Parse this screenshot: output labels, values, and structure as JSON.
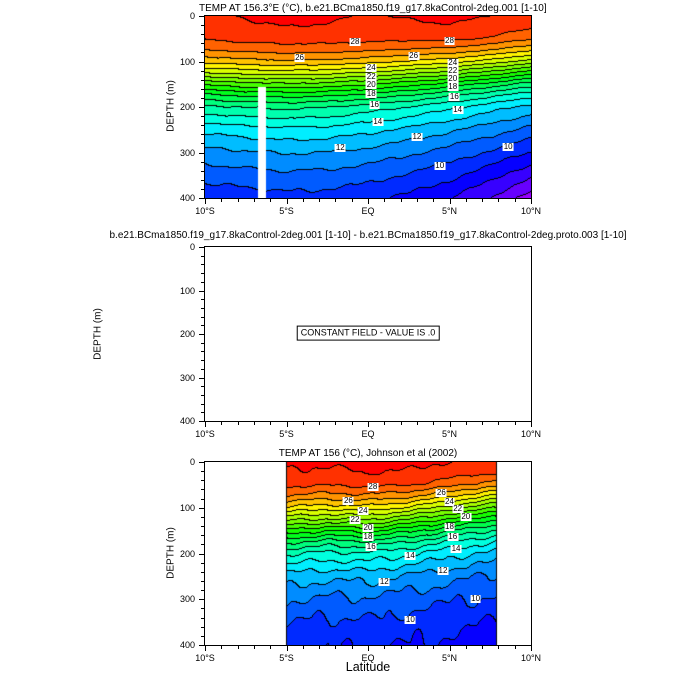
{
  "page": {
    "background": "#ffffff",
    "frame_color": "#000000",
    "xlabel": "Latitude"
  },
  "chart_data": [
    {
      "type": "heatmap",
      "subtype": "filled-contour-depth-section",
      "title": "TEMP AT 156.3°E (°C), b.e21.BCma1850.f19_g17.8kaControl-2deg.001 [1-10]",
      "ylabel": "DEPTH (m)",
      "units": "°C",
      "xlim": [
        -10,
        10
      ],
      "ylim": [
        0,
        400
      ],
      "y_inverted": true,
      "contour_interval": 1,
      "xticks": [
        {
          "v": -10,
          "label": "10°S"
        },
        {
          "v": -5,
          "label": "5°S"
        },
        {
          "v": 0,
          "label": "EQ"
        },
        {
          "v": 5,
          "label": "5°N"
        },
        {
          "v": 10,
          "label": "10°N"
        }
      ],
      "yticks": [
        {
          "v": 0,
          "label": "0"
        },
        {
          "v": 100,
          "label": "100"
        },
        {
          "v": 200,
          "label": "200"
        },
        {
          "v": 300,
          "label": "300"
        },
        {
          "v": 400,
          "label": "400"
        }
      ],
      "grid": {
        "lats": [
          -10,
          -7.5,
          -5,
          -2.5,
          0,
          2.5,
          5,
          7.5,
          10
        ],
        "depths": [
          0,
          25,
          50,
          75,
          100,
          125,
          150,
          175,
          200,
          250,
          300,
          350,
          400
        ],
        "temps": [
          [
            28.8,
            29.1,
            29.3,
            29.2,
            28.9,
            29.1,
            29.3,
            29.0,
            28.6
          ],
          [
            28.6,
            28.8,
            29.0,
            28.9,
            28.7,
            28.8,
            28.9,
            28.6,
            28.2
          ],
          [
            28.1,
            28.4,
            28.5,
            28.5,
            28.4,
            28.3,
            28.3,
            27.9,
            27.2
          ],
          [
            27.0,
            27.3,
            27.5,
            27.4,
            27.2,
            26.9,
            26.7,
            26.1,
            25.2
          ],
          [
            25.4,
            25.7,
            25.9,
            25.8,
            25.5,
            25.0,
            24.5,
            23.7,
            22.6
          ],
          [
            23.1,
            23.4,
            23.6,
            23.4,
            23.0,
            22.4,
            21.7,
            20.7,
            19.5
          ],
          [
            20.3,
            20.7,
            20.9,
            20.7,
            20.2,
            19.5,
            18.7,
            17.7,
            16.6
          ],
          [
            17.8,
            18.2,
            18.4,
            18.2,
            17.7,
            17.0,
            16.2,
            15.3,
            14.4
          ],
          [
            15.8,
            16.1,
            16.3,
            16.1,
            15.6,
            15.0,
            14.3,
            13.5,
            12.7
          ],
          [
            13.3,
            13.6,
            13.8,
            13.7,
            13.3,
            12.8,
            12.2,
            11.5,
            10.7
          ],
          [
            11.7,
            11.9,
            12.1,
            12.0,
            11.7,
            11.2,
            10.6,
            9.9,
            9.0
          ],
          [
            10.4,
            10.6,
            10.8,
            10.7,
            10.4,
            9.9,
            9.3,
            8.4,
            7.2
          ],
          [
            9.3,
            9.5,
            9.7,
            9.6,
            9.3,
            8.8,
            8.1,
            7.0,
            5.6
          ]
        ]
      },
      "mask_gap": {
        "lat_min": -6.75,
        "lat_max": -6.28,
        "depth_min": 155,
        "depth_max": 400
      },
      "contour_labels": [
        {
          "text": "28",
          "lat": -0.8,
          "depth": 58
        },
        {
          "text": "28",
          "lat": 5.0,
          "depth": 54
        },
        {
          "text": "26",
          "lat": -4.2,
          "depth": 92
        },
        {
          "text": "26",
          "lat": 2.8,
          "depth": 88
        },
        {
          "text": "24",
          "lat": 0.2,
          "depth": 115
        },
        {
          "text": "24",
          "lat": 5.2,
          "depth": 103
        },
        {
          "text": "22",
          "lat": 0.2,
          "depth": 134
        },
        {
          "text": "22",
          "lat": 5.2,
          "depth": 121
        },
        {
          "text": "20",
          "lat": 0.2,
          "depth": 152
        },
        {
          "text": "20",
          "lat": 5.2,
          "depth": 139
        },
        {
          "text": "18",
          "lat": 0.2,
          "depth": 172
        },
        {
          "text": "18",
          "lat": 5.2,
          "depth": 157
        },
        {
          "text": "16",
          "lat": 0.4,
          "depth": 195
        },
        {
          "text": "16",
          "lat": 5.3,
          "depth": 178
        },
        {
          "text": "14",
          "lat": 0.6,
          "depth": 233
        },
        {
          "text": "14",
          "lat": 5.5,
          "depth": 207
        },
        {
          "text": "12",
          "lat": -1.7,
          "depth": 290
        },
        {
          "text": "12",
          "lat": 3.0,
          "depth": 265
        },
        {
          "text": "10",
          "lat": 4.4,
          "depth": 330
        },
        {
          "text": "10",
          "lat": 8.6,
          "depth": 288
        }
      ],
      "style": {
        "wiggle_amp": 0.12,
        "outline_data_edge": false,
        "line_color": "#000000",
        "colormap": "rainbow",
        "warm_color_hue": 0,
        "cold_color_hue": 276
      }
    },
    {
      "type": "empty",
      "title": "b.e21.BCma1850.f19_g17.8kaControl-2deg.001 [1-10] - b.e21.BCma1850.f19_g17.8kaControl-2deg.proto.003 [1-10]",
      "ylabel": "DEPTH (m)",
      "note": "CONSTANT FIELD - VALUE IS .0",
      "xlim": [
        -10,
        10
      ],
      "ylim": [
        0,
        400
      ],
      "y_inverted": true,
      "xticks": [
        {
          "v": -10,
          "label": "10°S"
        },
        {
          "v": -5,
          "label": "5°S"
        },
        {
          "v": 0,
          "label": "EQ"
        },
        {
          "v": 5,
          "label": "5°N"
        },
        {
          "v": 10,
          "label": "10°N"
        }
      ],
      "yticks": [
        {
          "v": 0,
          "label": "0"
        },
        {
          "v": 100,
          "label": "100"
        },
        {
          "v": 200,
          "label": "200"
        },
        {
          "v": 300,
          "label": "300"
        },
        {
          "v": 400,
          "label": "400"
        }
      ]
    },
    {
      "type": "heatmap",
      "subtype": "filled-contour-depth-section",
      "title": "TEMP AT 156 (°C), Johnson et al (2002)",
      "ylabel": "DEPTH (m)",
      "units": "°C",
      "xlim": [
        -10,
        10
      ],
      "ylim": [
        0,
        400
      ],
      "y_inverted": true,
      "contour_interval": 1,
      "data_lat_range": [
        -5,
        7.9
      ],
      "xticks": [
        {
          "v": -10,
          "label": "10°S"
        },
        {
          "v": -5,
          "label": "5°S"
        },
        {
          "v": 0,
          "label": "EQ"
        },
        {
          "v": 5,
          "label": "5°N"
        },
        {
          "v": 10,
          "label": "10°N"
        }
      ],
      "yticks": [
        {
          "v": 0,
          "label": "0"
        },
        {
          "v": 100,
          "label": "100"
        },
        {
          "v": 200,
          "label": "200"
        },
        {
          "v": 300,
          "label": "300"
        },
        {
          "v": 400,
          "label": "400"
        }
      ],
      "grid": {
        "lats": [
          -5,
          -2.5,
          0,
          2.5,
          5,
          6.5,
          7.9
        ],
        "depths": [
          0,
          25,
          50,
          75,
          100,
          125,
          150,
          175,
          200,
          250,
          300,
          350,
          400
        ],
        "temps": [
          [
            29.3,
            29.1,
            29.4,
            29.3,
            29.0,
            28.9,
            28.7
          ],
          [
            28.9,
            28.8,
            29.0,
            28.9,
            28.5,
            28.3,
            28.0
          ],
          [
            28.3,
            28.1,
            28.3,
            28.1,
            27.4,
            26.9,
            26.3
          ],
          [
            26.9,
            26.6,
            26.8,
            26.3,
            25.2,
            24.5,
            23.7
          ],
          [
            24.9,
            24.5,
            24.7,
            23.9,
            22.6,
            21.8,
            21.0
          ],
          [
            22.4,
            22.0,
            22.2,
            21.2,
            19.9,
            19.1,
            18.3
          ],
          [
            19.7,
            19.2,
            19.4,
            18.4,
            17.2,
            16.5,
            15.9
          ],
          [
            17.2,
            16.7,
            16.9,
            16.0,
            15.0,
            14.5,
            14.0
          ],
          [
            15.2,
            14.8,
            14.9,
            14.2,
            13.4,
            13.0,
            12.7
          ],
          [
            12.7,
            12.3,
            12.4,
            11.9,
            11.4,
            11.1,
            10.9
          ],
          [
            11.1,
            10.8,
            10.9,
            10.5,
            10.2,
            10.0,
            9.8
          ],
          [
            10.1,
            9.8,
            9.9,
            9.6,
            9.3,
            9.1,
            9.0
          ],
          [
            9.3,
            9.1,
            9.2,
            9.0,
            8.8,
            8.7,
            8.6
          ]
        ]
      },
      "contour_labels": [
        {
          "text": "28",
          "lat": 0.3,
          "depth": 55
        },
        {
          "text": "26",
          "lat": -1.2,
          "depth": 85
        },
        {
          "text": "26",
          "lat": 4.5,
          "depth": 68
        },
        {
          "text": "24",
          "lat": -0.3,
          "depth": 107
        },
        {
          "text": "24",
          "lat": 5.0,
          "depth": 88
        },
        {
          "text": "22",
          "lat": -0.8,
          "depth": 127
        },
        {
          "text": "22",
          "lat": 5.5,
          "depth": 102
        },
        {
          "text": "20",
          "lat": 0.0,
          "depth": 145
        },
        {
          "text": "20",
          "lat": 6.0,
          "depth": 121
        },
        {
          "text": "18",
          "lat": 0.0,
          "depth": 164
        },
        {
          "text": "18",
          "lat": 5.0,
          "depth": 142
        },
        {
          "text": "16",
          "lat": 0.2,
          "depth": 186
        },
        {
          "text": "16",
          "lat": 5.2,
          "depth": 163
        },
        {
          "text": "14",
          "lat": 2.6,
          "depth": 205
        },
        {
          "text": "14",
          "lat": 5.4,
          "depth": 190
        },
        {
          "text": "12",
          "lat": 1.0,
          "depth": 263
        },
        {
          "text": "12",
          "lat": 4.6,
          "depth": 238
        },
        {
          "text": "10",
          "lat": 2.6,
          "depth": 345
        },
        {
          "text": "10",
          "lat": 6.6,
          "depth": 300
        }
      ],
      "style": {
        "wiggle_amp": 0.35,
        "outline_data_edge": true,
        "line_color": "#000000",
        "colormap": "rainbow",
        "warm_color_hue": 0,
        "cold_color_hue": 276
      }
    }
  ]
}
